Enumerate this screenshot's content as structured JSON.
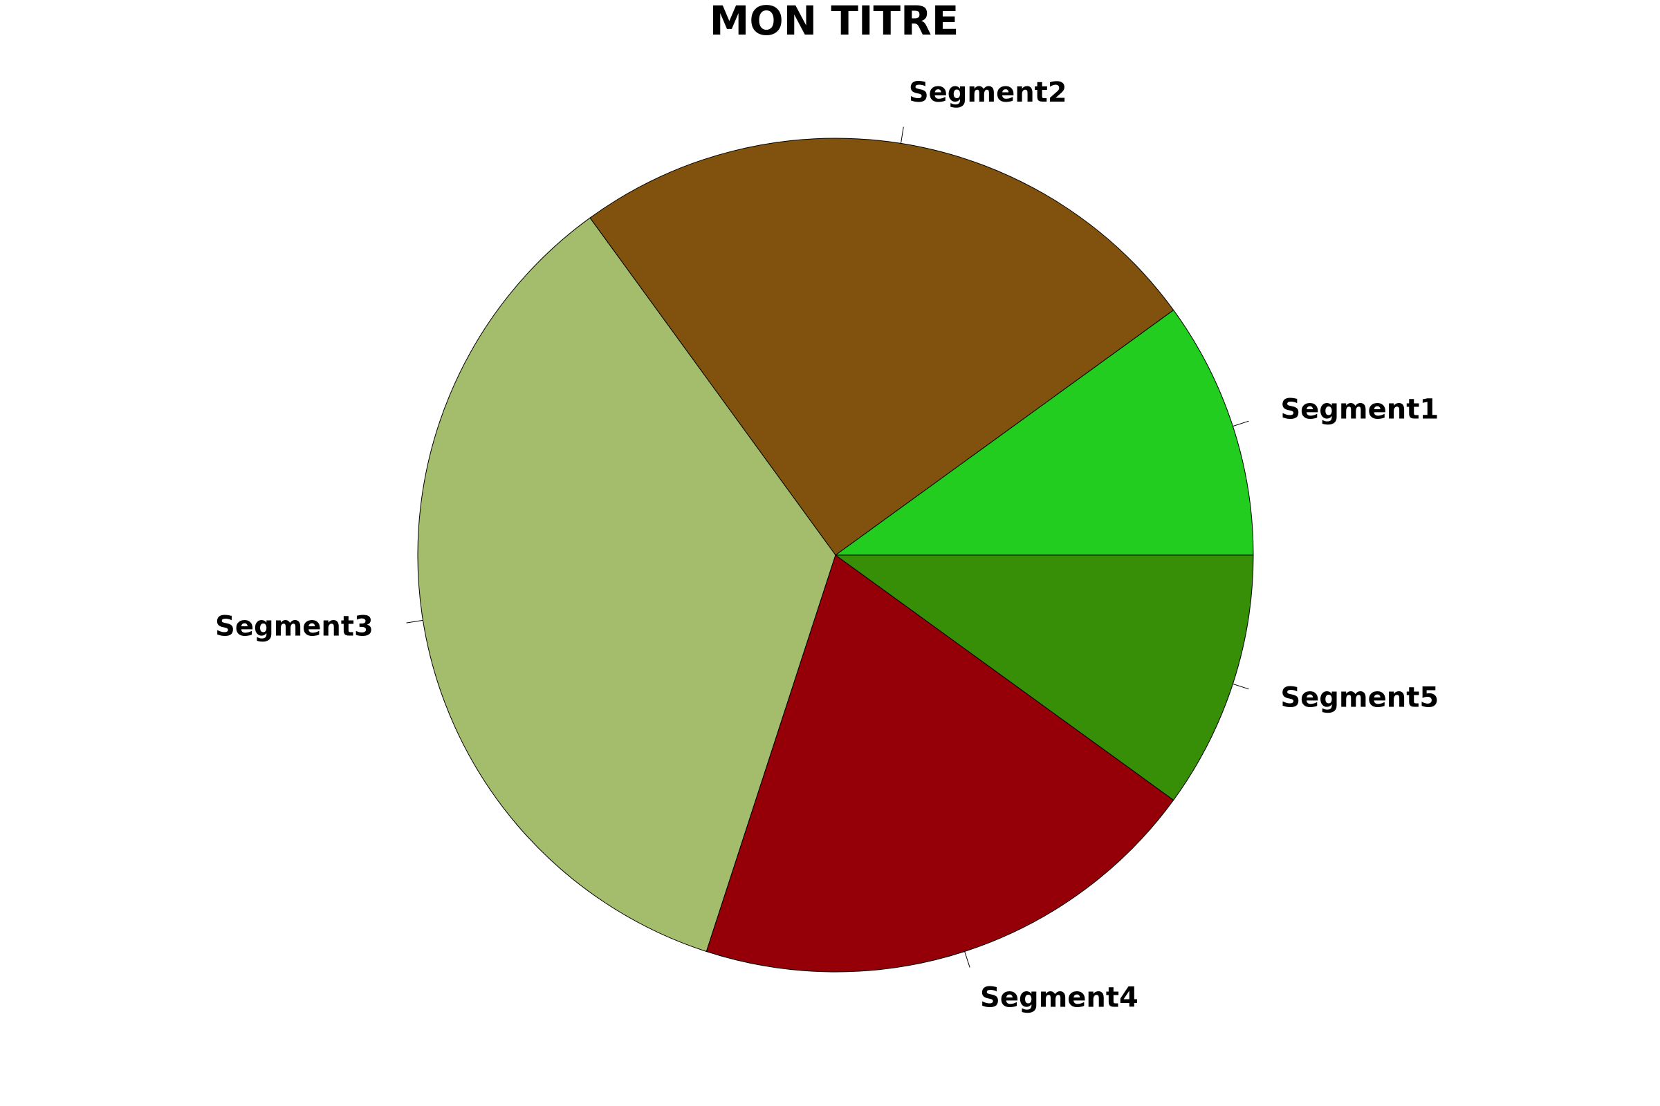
{
  "chart_data": {
    "type": "pie",
    "title": "MON TITRE",
    "slices": [
      {
        "label": "Segment1",
        "value": 10,
        "color": "#23cd1f"
      },
      {
        "label": "Segment2",
        "value": 25,
        "color": "#80520d"
      },
      {
        "label": "Segment3",
        "value": 35,
        "color": "#a4bd6d"
      },
      {
        "label": "Segment4",
        "value": 20,
        "color": "#950008"
      },
      {
        "label": "Segment5",
        "value": 10,
        "color": "#378f07"
      }
    ],
    "direction": "counterclockwise",
    "start_angle_degrees": 0,
    "legend": "none"
  }
}
